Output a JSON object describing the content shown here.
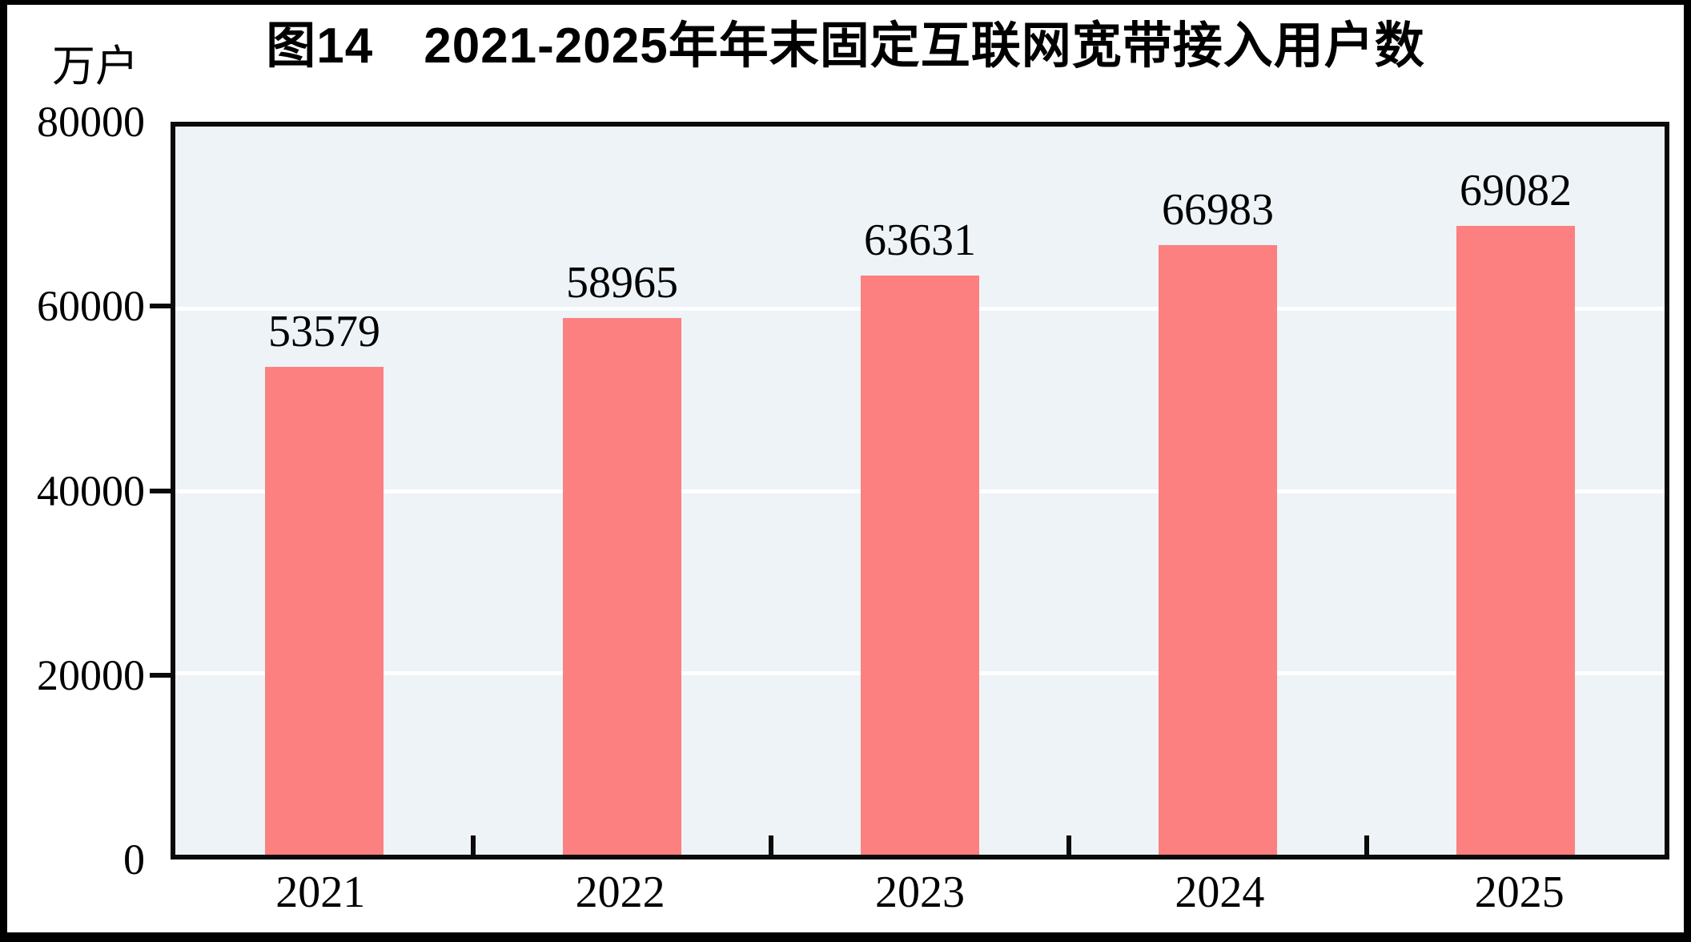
{
  "figure": {
    "title": "图14　2021-2025年年末固定互联网宽带接入用户数",
    "unit_label": "万户"
  },
  "chart_data": {
    "type": "bar",
    "title": "图14　2021-2025年年末固定互联网宽带接入用户数",
    "categories": [
      "2021",
      "2022",
      "2023",
      "2024",
      "2025"
    ],
    "values": [
      53579,
      58965,
      63631,
      66983,
      69082
    ],
    "data_labels": [
      "53579",
      "58965",
      "63631",
      "66983",
      "69082"
    ],
    "xlabel": "",
    "ylabel": "万户",
    "ylim": [
      0,
      80000
    ],
    "yticks": [
      0,
      20000,
      40000,
      60000,
      80000
    ],
    "ytick_labels": [
      "0",
      "20000",
      "40000",
      "60000",
      "80000"
    ],
    "grid": "horizontal",
    "gridline_ticks": [
      20000,
      40000,
      60000
    ],
    "legend": "none",
    "colors": {
      "bar_fill": "#FC8080",
      "plot_background": "#EDF3F7",
      "gridline": "#FFFFFF",
      "axis_border": "#0A0A0A",
      "text": "#000000",
      "figure_border": "#000000"
    }
  }
}
